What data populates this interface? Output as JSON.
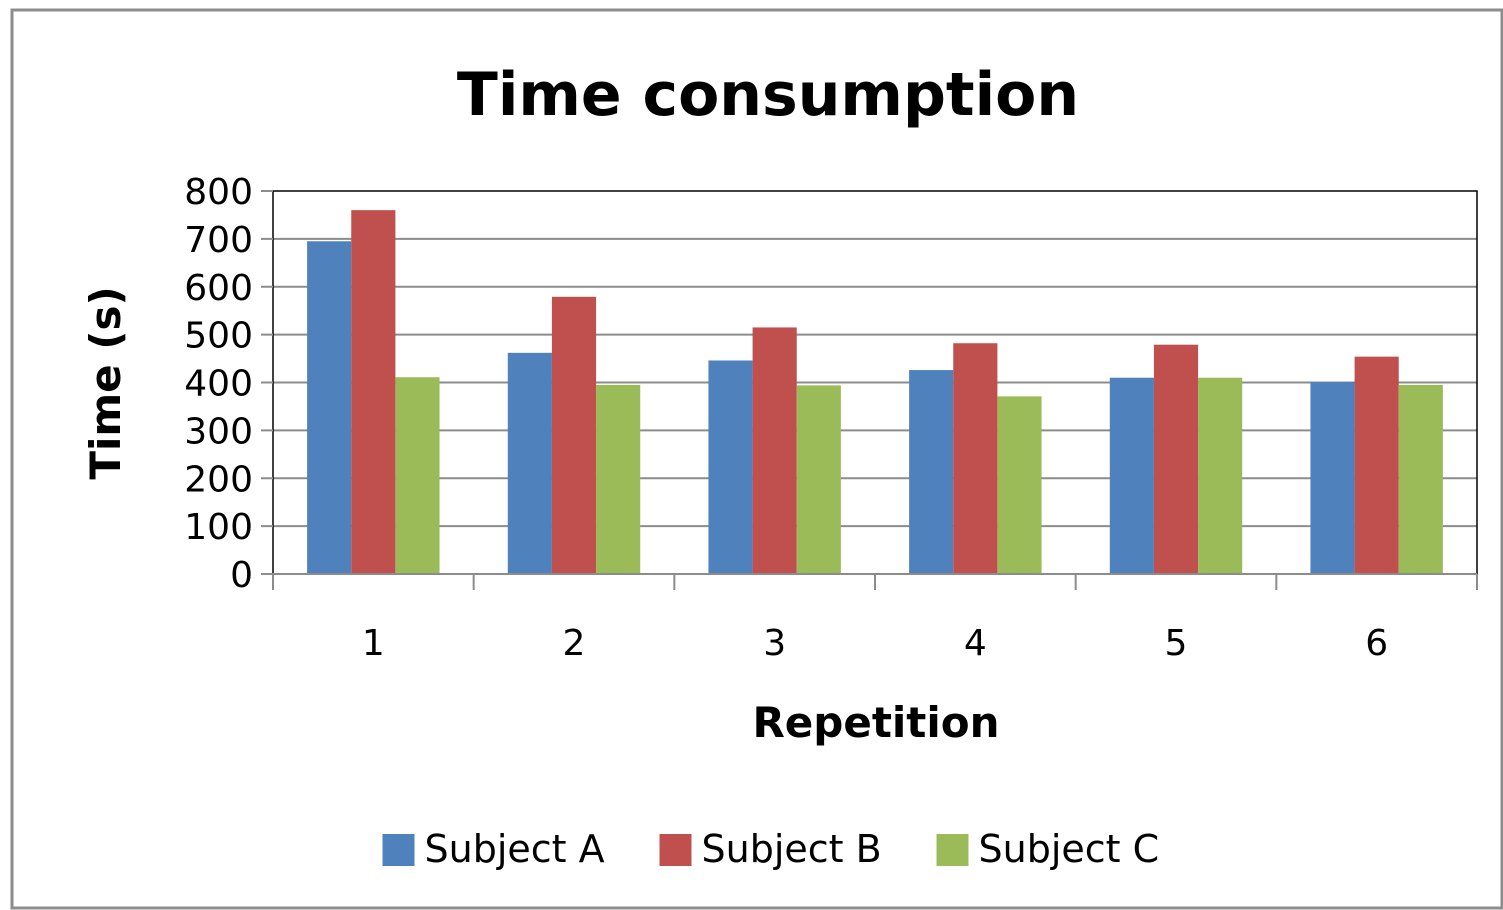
{
  "chart_data": {
    "type": "bar",
    "title": "Time  consumption",
    "xlabel": "Repetition",
    "ylabel": "Time  (s)",
    "categories": [
      "1",
      "2",
      "3",
      "4",
      "5",
      "6"
    ],
    "series": [
      {
        "name": "Subject A",
        "color": "#4F81BD",
        "values": [
          695,
          462,
          446,
          426,
          410,
          401
        ]
      },
      {
        "name": "Subject B",
        "color": "#C0504D",
        "values": [
          760,
          579,
          515,
          482,
          479,
          454
        ]
      },
      {
        "name": "Subject C",
        "color": "#9BBB59",
        "values": [
          411,
          395,
          394,
          371,
          410,
          395
        ]
      }
    ],
    "ylim": [
      0,
      800
    ],
    "yticks": [
      "0",
      "100",
      "200",
      "300",
      "400",
      "500",
      "600",
      "700",
      "800"
    ],
    "grid": true,
    "legend_position": "bottom"
  }
}
